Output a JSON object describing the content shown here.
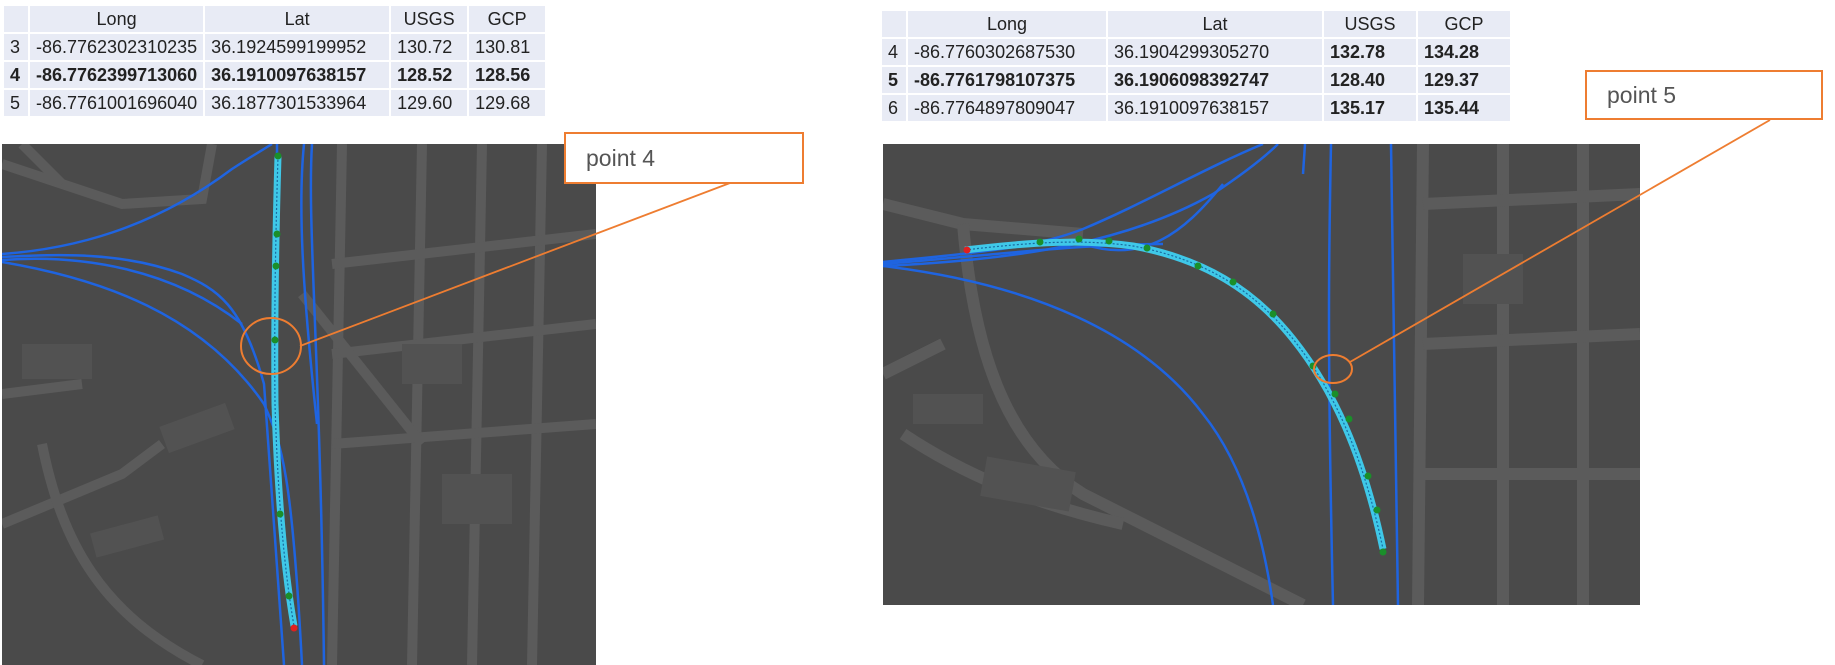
{
  "table_left": {
    "headers": [
      "",
      "Long",
      "Lat",
      "USGS",
      "GCP"
    ],
    "rows": [
      {
        "idx": "3",
        "long": "-86.7762302310235",
        "lat": "36.1924599199952",
        "usgs": "130.72",
        "gcp": "130.81"
      },
      {
        "idx": "4",
        "long": "-86.7762399713060",
        "lat": "36.1910097638157",
        "usgs": "128.52",
        "gcp": "128.56"
      },
      {
        "idx": "5",
        "long": "-86.7761001696040",
        "lat": "36.1877301533964",
        "usgs": "129.60",
        "gcp": "129.68"
      }
    ]
  },
  "table_right": {
    "headers": [
      "",
      "Long",
      "Lat",
      "USGS",
      "GCP"
    ],
    "rows": [
      {
        "idx": "4",
        "long": "-86.7760302687530",
        "lat": "36.1904299305270",
        "usgs": "132.78",
        "gcp": "134.28"
      },
      {
        "idx": "5",
        "long": "-86.7761798107375",
        "lat": "36.1906098392747",
        "usgs": "128.40",
        "gcp": "129.37"
      },
      {
        "idx": "6",
        "long": "-86.7764897809047",
        "lat": "36.1910097638157",
        "usgs": "135.17",
        "gcp": "135.44"
      }
    ]
  },
  "callout_left": "point 4",
  "callout_right": "point 5",
  "colors": {
    "map_bg": "#4a4a4a",
    "road": "#5b5b5b",
    "route": "#1f64e0",
    "highlight": "#3fc8e8",
    "vertex": "#1a8f2a",
    "endpoint": "#e02020",
    "callout": "#ee7d31",
    "table_cell": "#e8ebf5"
  }
}
